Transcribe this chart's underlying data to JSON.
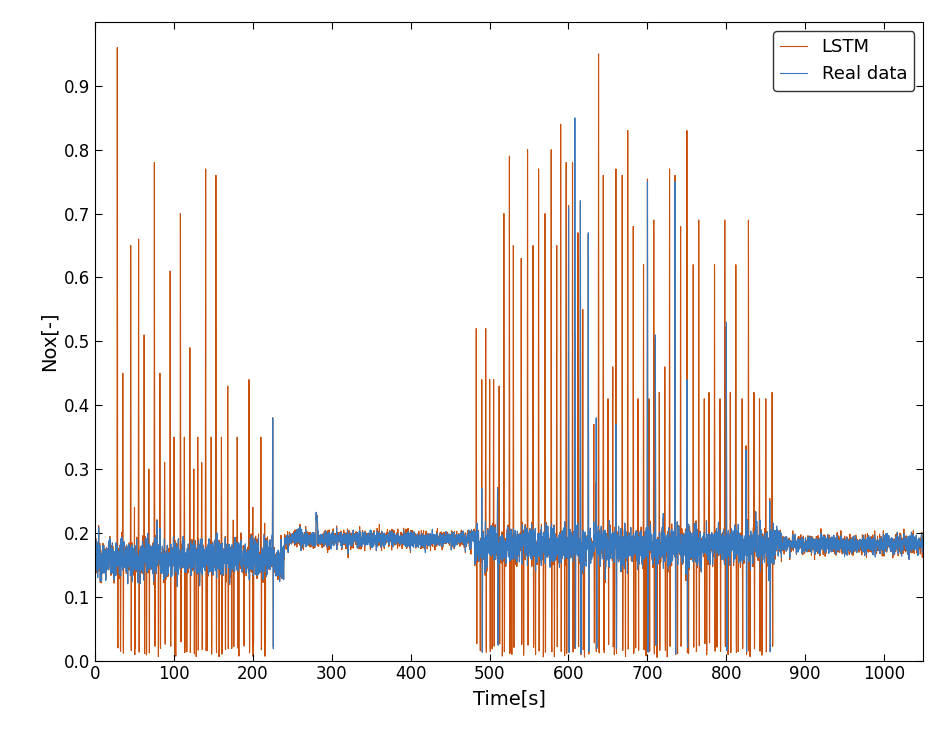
{
  "real_color": "#3878be",
  "lstm_color": "#c8500a",
  "xlabel": "Time[s]",
  "ylabel": "Nox[-]",
  "xlim": [
    0,
    1050
  ],
  "ylim": [
    0,
    1.0
  ],
  "yticks": [
    0,
    0.1,
    0.2,
    0.3,
    0.4,
    0.5,
    0.6,
    0.7,
    0.8,
    0.9
  ],
  "xticks": [
    0,
    100,
    200,
    300,
    400,
    500,
    600,
    700,
    800,
    900,
    1000
  ],
  "legend_labels": [
    "Real data",
    "LSTM"
  ],
  "legend_loc": "upper right",
  "real_linewidth": 0.8,
  "lstm_linewidth": 0.8,
  "figsize": [
    9.52,
    7.34
  ],
  "dpi": 100
}
